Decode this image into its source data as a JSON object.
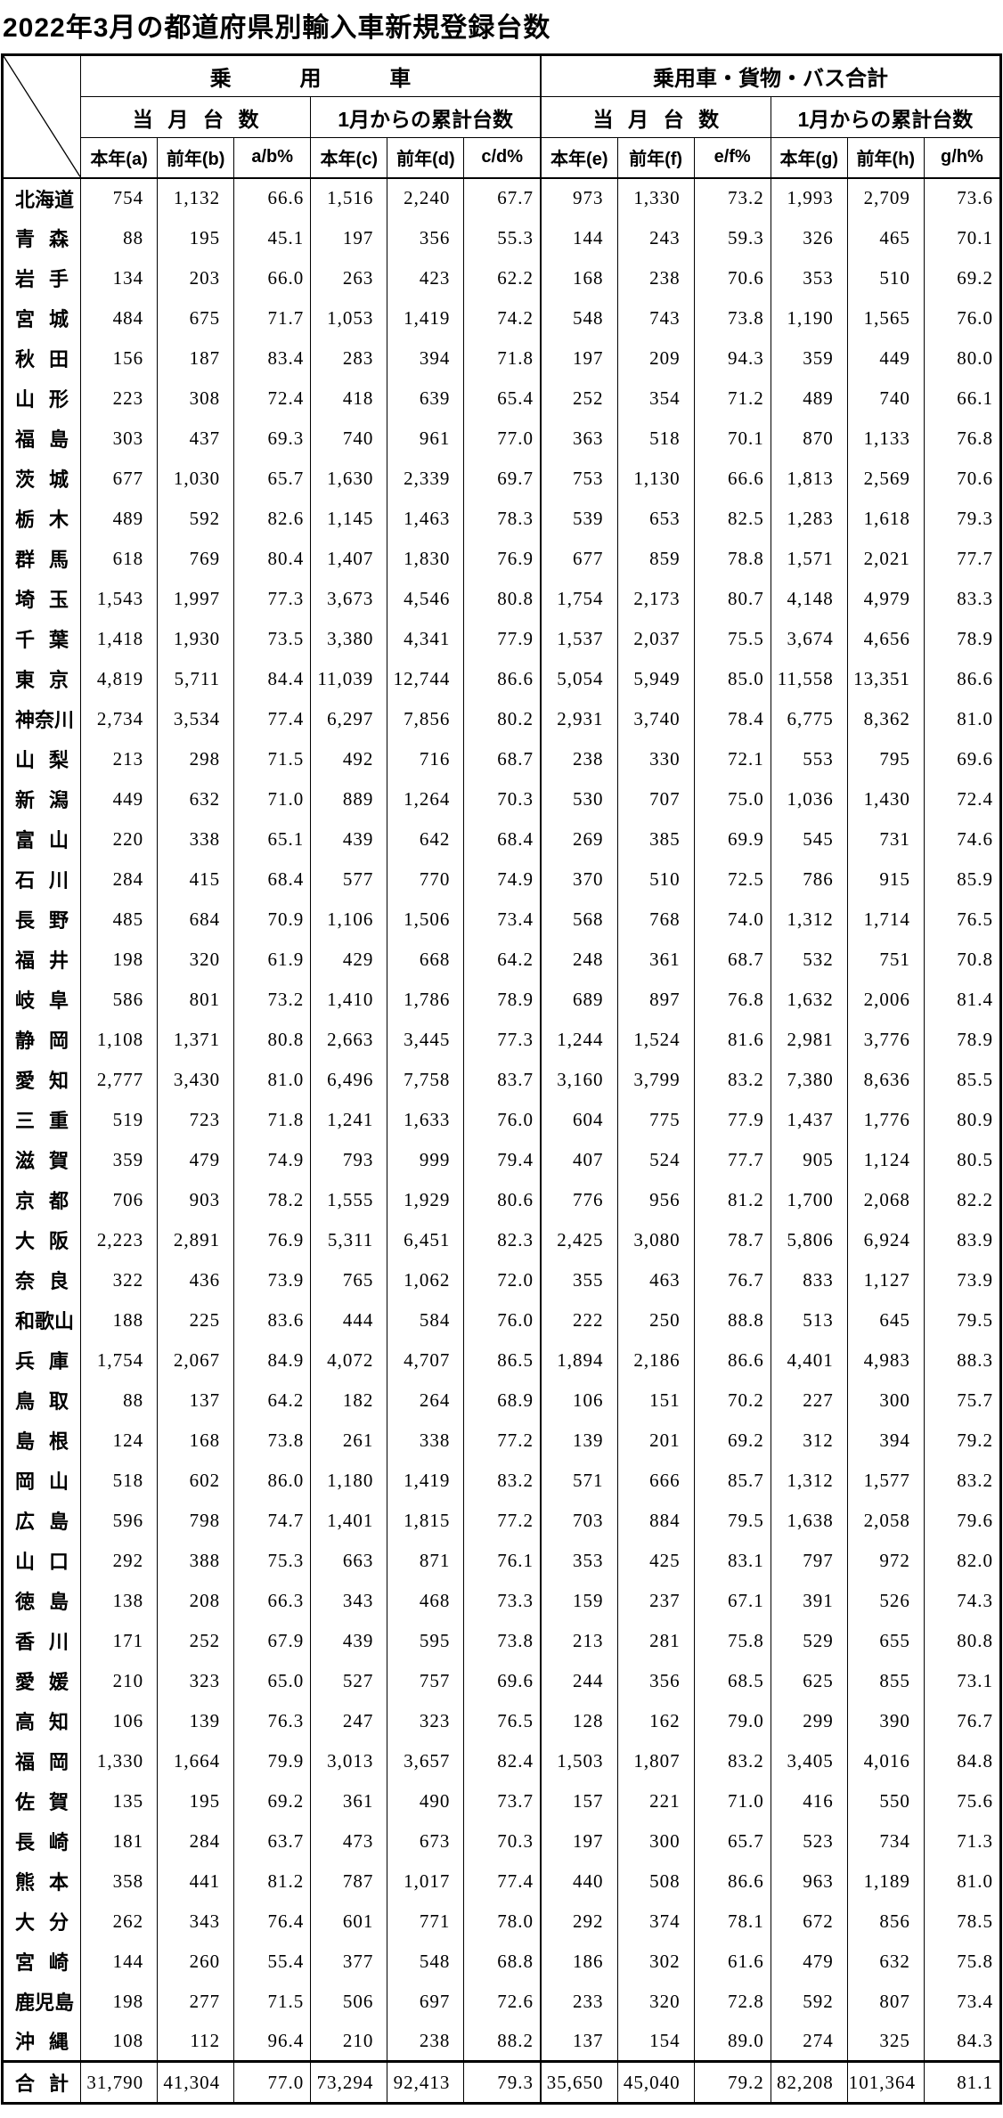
{
  "title": "2022年3月の都道府県別輸入車新規登録台数",
  "table": {
    "group_headers": [
      "乗用車",
      "乗用車・貨物・バス合計"
    ],
    "sub_headers": [
      "当月台数",
      "1月からの累計台数",
      "当月台数",
      "1月からの累計台数"
    ],
    "col_headers": [
      "本年(a)",
      "前年(b)",
      "a/b%",
      "本年(c)",
      "前年(d)",
      "c/d%",
      "本年(e)",
      "前年(f)",
      "e/f%",
      "本年(g)",
      "前年(h)",
      "g/h%"
    ],
    "rows": [
      {
        "pref": "北海道",
        "values": [
          "754",
          "1,132",
          "66.6",
          "1,516",
          "2,240",
          "67.7",
          "973",
          "1,330",
          "73.2",
          "1,993",
          "2,709",
          "73.6"
        ]
      },
      {
        "pref": "青森",
        "values": [
          "88",
          "195",
          "45.1",
          "197",
          "356",
          "55.3",
          "144",
          "243",
          "59.3",
          "326",
          "465",
          "70.1"
        ]
      },
      {
        "pref": "岩手",
        "values": [
          "134",
          "203",
          "66.0",
          "263",
          "423",
          "62.2",
          "168",
          "238",
          "70.6",
          "353",
          "510",
          "69.2"
        ]
      },
      {
        "pref": "宮城",
        "values": [
          "484",
          "675",
          "71.7",
          "1,053",
          "1,419",
          "74.2",
          "548",
          "743",
          "73.8",
          "1,190",
          "1,565",
          "76.0"
        ]
      },
      {
        "pref": "秋田",
        "values": [
          "156",
          "187",
          "83.4",
          "283",
          "394",
          "71.8",
          "197",
          "209",
          "94.3",
          "359",
          "449",
          "80.0"
        ]
      },
      {
        "pref": "山形",
        "values": [
          "223",
          "308",
          "72.4",
          "418",
          "639",
          "65.4",
          "252",
          "354",
          "71.2",
          "489",
          "740",
          "66.1"
        ]
      },
      {
        "pref": "福島",
        "values": [
          "303",
          "437",
          "69.3",
          "740",
          "961",
          "77.0",
          "363",
          "518",
          "70.1",
          "870",
          "1,133",
          "76.8"
        ]
      },
      {
        "pref": "茨城",
        "values": [
          "677",
          "1,030",
          "65.7",
          "1,630",
          "2,339",
          "69.7",
          "753",
          "1,130",
          "66.6",
          "1,813",
          "2,569",
          "70.6"
        ]
      },
      {
        "pref": "栃木",
        "values": [
          "489",
          "592",
          "82.6",
          "1,145",
          "1,463",
          "78.3",
          "539",
          "653",
          "82.5",
          "1,283",
          "1,618",
          "79.3"
        ]
      },
      {
        "pref": "群馬",
        "values": [
          "618",
          "769",
          "80.4",
          "1,407",
          "1,830",
          "76.9",
          "677",
          "859",
          "78.8",
          "1,571",
          "2,021",
          "77.7"
        ]
      },
      {
        "pref": "埼玉",
        "values": [
          "1,543",
          "1,997",
          "77.3",
          "3,673",
          "4,546",
          "80.8",
          "1,754",
          "2,173",
          "80.7",
          "4,148",
          "4,979",
          "83.3"
        ]
      },
      {
        "pref": "千葉",
        "values": [
          "1,418",
          "1,930",
          "73.5",
          "3,380",
          "4,341",
          "77.9",
          "1,537",
          "2,037",
          "75.5",
          "3,674",
          "4,656",
          "78.9"
        ]
      },
      {
        "pref": "東京",
        "values": [
          "4,819",
          "5,711",
          "84.4",
          "11,039",
          "12,744",
          "86.6",
          "5,054",
          "5,949",
          "85.0",
          "11,558",
          "13,351",
          "86.6"
        ]
      },
      {
        "pref": "神奈川",
        "values": [
          "2,734",
          "3,534",
          "77.4",
          "6,297",
          "7,856",
          "80.2",
          "2,931",
          "3,740",
          "78.4",
          "6,775",
          "8,362",
          "81.0"
        ]
      },
      {
        "pref": "山梨",
        "values": [
          "213",
          "298",
          "71.5",
          "492",
          "716",
          "68.7",
          "238",
          "330",
          "72.1",
          "553",
          "795",
          "69.6"
        ]
      },
      {
        "pref": "新潟",
        "values": [
          "449",
          "632",
          "71.0",
          "889",
          "1,264",
          "70.3",
          "530",
          "707",
          "75.0",
          "1,036",
          "1,430",
          "72.4"
        ]
      },
      {
        "pref": "富山",
        "values": [
          "220",
          "338",
          "65.1",
          "439",
          "642",
          "68.4",
          "269",
          "385",
          "69.9",
          "545",
          "731",
          "74.6"
        ]
      },
      {
        "pref": "石川",
        "values": [
          "284",
          "415",
          "68.4",
          "577",
          "770",
          "74.9",
          "370",
          "510",
          "72.5",
          "786",
          "915",
          "85.9"
        ]
      },
      {
        "pref": "長野",
        "values": [
          "485",
          "684",
          "70.9",
          "1,106",
          "1,506",
          "73.4",
          "568",
          "768",
          "74.0",
          "1,312",
          "1,714",
          "76.5"
        ]
      },
      {
        "pref": "福井",
        "values": [
          "198",
          "320",
          "61.9",
          "429",
          "668",
          "64.2",
          "248",
          "361",
          "68.7",
          "532",
          "751",
          "70.8"
        ]
      },
      {
        "pref": "岐阜",
        "values": [
          "586",
          "801",
          "73.2",
          "1,410",
          "1,786",
          "78.9",
          "689",
          "897",
          "76.8",
          "1,632",
          "2,006",
          "81.4"
        ]
      },
      {
        "pref": "静岡",
        "values": [
          "1,108",
          "1,371",
          "80.8",
          "2,663",
          "3,445",
          "77.3",
          "1,244",
          "1,524",
          "81.6",
          "2,981",
          "3,776",
          "78.9"
        ]
      },
      {
        "pref": "愛知",
        "values": [
          "2,777",
          "3,430",
          "81.0",
          "6,496",
          "7,758",
          "83.7",
          "3,160",
          "3,799",
          "83.2",
          "7,380",
          "8,636",
          "85.5"
        ]
      },
      {
        "pref": "三重",
        "values": [
          "519",
          "723",
          "71.8",
          "1,241",
          "1,633",
          "76.0",
          "604",
          "775",
          "77.9",
          "1,437",
          "1,776",
          "80.9"
        ]
      },
      {
        "pref": "滋賀",
        "values": [
          "359",
          "479",
          "74.9",
          "793",
          "999",
          "79.4",
          "407",
          "524",
          "77.7",
          "905",
          "1,124",
          "80.5"
        ]
      },
      {
        "pref": "京都",
        "values": [
          "706",
          "903",
          "78.2",
          "1,555",
          "1,929",
          "80.6",
          "776",
          "956",
          "81.2",
          "1,700",
          "2,068",
          "82.2"
        ]
      },
      {
        "pref": "大阪",
        "values": [
          "2,223",
          "2,891",
          "76.9",
          "5,311",
          "6,451",
          "82.3",
          "2,425",
          "3,080",
          "78.7",
          "5,806",
          "6,924",
          "83.9"
        ]
      },
      {
        "pref": "奈良",
        "values": [
          "322",
          "436",
          "73.9",
          "765",
          "1,062",
          "72.0",
          "355",
          "463",
          "76.7",
          "833",
          "1,127",
          "73.9"
        ]
      },
      {
        "pref": "和歌山",
        "values": [
          "188",
          "225",
          "83.6",
          "444",
          "584",
          "76.0",
          "222",
          "250",
          "88.8",
          "513",
          "645",
          "79.5"
        ]
      },
      {
        "pref": "兵庫",
        "values": [
          "1,754",
          "2,067",
          "84.9",
          "4,072",
          "4,707",
          "86.5",
          "1,894",
          "2,186",
          "86.6",
          "4,401",
          "4,983",
          "88.3"
        ]
      },
      {
        "pref": "鳥取",
        "values": [
          "88",
          "137",
          "64.2",
          "182",
          "264",
          "68.9",
          "106",
          "151",
          "70.2",
          "227",
          "300",
          "75.7"
        ]
      },
      {
        "pref": "島根",
        "values": [
          "124",
          "168",
          "73.8",
          "261",
          "338",
          "77.2",
          "139",
          "201",
          "69.2",
          "312",
          "394",
          "79.2"
        ]
      },
      {
        "pref": "岡山",
        "values": [
          "518",
          "602",
          "86.0",
          "1,180",
          "1,419",
          "83.2",
          "571",
          "666",
          "85.7",
          "1,312",
          "1,577",
          "83.2"
        ]
      },
      {
        "pref": "広島",
        "values": [
          "596",
          "798",
          "74.7",
          "1,401",
          "1,815",
          "77.2",
          "703",
          "884",
          "79.5",
          "1,638",
          "2,058",
          "79.6"
        ]
      },
      {
        "pref": "山口",
        "values": [
          "292",
          "388",
          "75.3",
          "663",
          "871",
          "76.1",
          "353",
          "425",
          "83.1",
          "797",
          "972",
          "82.0"
        ]
      },
      {
        "pref": "徳島",
        "values": [
          "138",
          "208",
          "66.3",
          "343",
          "468",
          "73.3",
          "159",
          "237",
          "67.1",
          "391",
          "526",
          "74.3"
        ]
      },
      {
        "pref": "香川",
        "values": [
          "171",
          "252",
          "67.9",
          "439",
          "595",
          "73.8",
          "213",
          "281",
          "75.8",
          "529",
          "655",
          "80.8"
        ]
      },
      {
        "pref": "愛媛",
        "values": [
          "210",
          "323",
          "65.0",
          "527",
          "757",
          "69.6",
          "244",
          "356",
          "68.5",
          "625",
          "855",
          "73.1"
        ]
      },
      {
        "pref": "高知",
        "values": [
          "106",
          "139",
          "76.3",
          "247",
          "323",
          "76.5",
          "128",
          "162",
          "79.0",
          "299",
          "390",
          "76.7"
        ]
      },
      {
        "pref": "福岡",
        "values": [
          "1,330",
          "1,664",
          "79.9",
          "3,013",
          "3,657",
          "82.4",
          "1,503",
          "1,807",
          "83.2",
          "3,405",
          "4,016",
          "84.8"
        ]
      },
      {
        "pref": "佐賀",
        "values": [
          "135",
          "195",
          "69.2",
          "361",
          "490",
          "73.7",
          "157",
          "221",
          "71.0",
          "416",
          "550",
          "75.6"
        ]
      },
      {
        "pref": "長崎",
        "values": [
          "181",
          "284",
          "63.7",
          "473",
          "673",
          "70.3",
          "197",
          "300",
          "65.7",
          "523",
          "734",
          "71.3"
        ]
      },
      {
        "pref": "熊本",
        "values": [
          "358",
          "441",
          "81.2",
          "787",
          "1,017",
          "77.4",
          "440",
          "508",
          "86.6",
          "963",
          "1,189",
          "81.0"
        ]
      },
      {
        "pref": "大分",
        "values": [
          "262",
          "343",
          "76.4",
          "601",
          "771",
          "78.0",
          "292",
          "374",
          "78.1",
          "672",
          "856",
          "78.5"
        ]
      },
      {
        "pref": "宮崎",
        "values": [
          "144",
          "260",
          "55.4",
          "377",
          "548",
          "68.8",
          "186",
          "302",
          "61.6",
          "479",
          "632",
          "75.8"
        ]
      },
      {
        "pref": "鹿児島",
        "values": [
          "198",
          "277",
          "71.5",
          "506",
          "697",
          "72.6",
          "233",
          "320",
          "72.8",
          "592",
          "807",
          "73.4"
        ]
      },
      {
        "pref": "沖縄",
        "values": [
          "108",
          "112",
          "96.4",
          "210",
          "238",
          "88.2",
          "137",
          "154",
          "89.0",
          "274",
          "325",
          "84.3"
        ]
      }
    ],
    "total_row": {
      "pref": "合計",
      "values": [
        "31,790",
        "41,304",
        "77.0",
        "73,294",
        "92,413",
        "79.3",
        "35,650",
        "45,040",
        "79.2",
        "82,208",
        "101,364",
        "81.1"
      ]
    }
  }
}
